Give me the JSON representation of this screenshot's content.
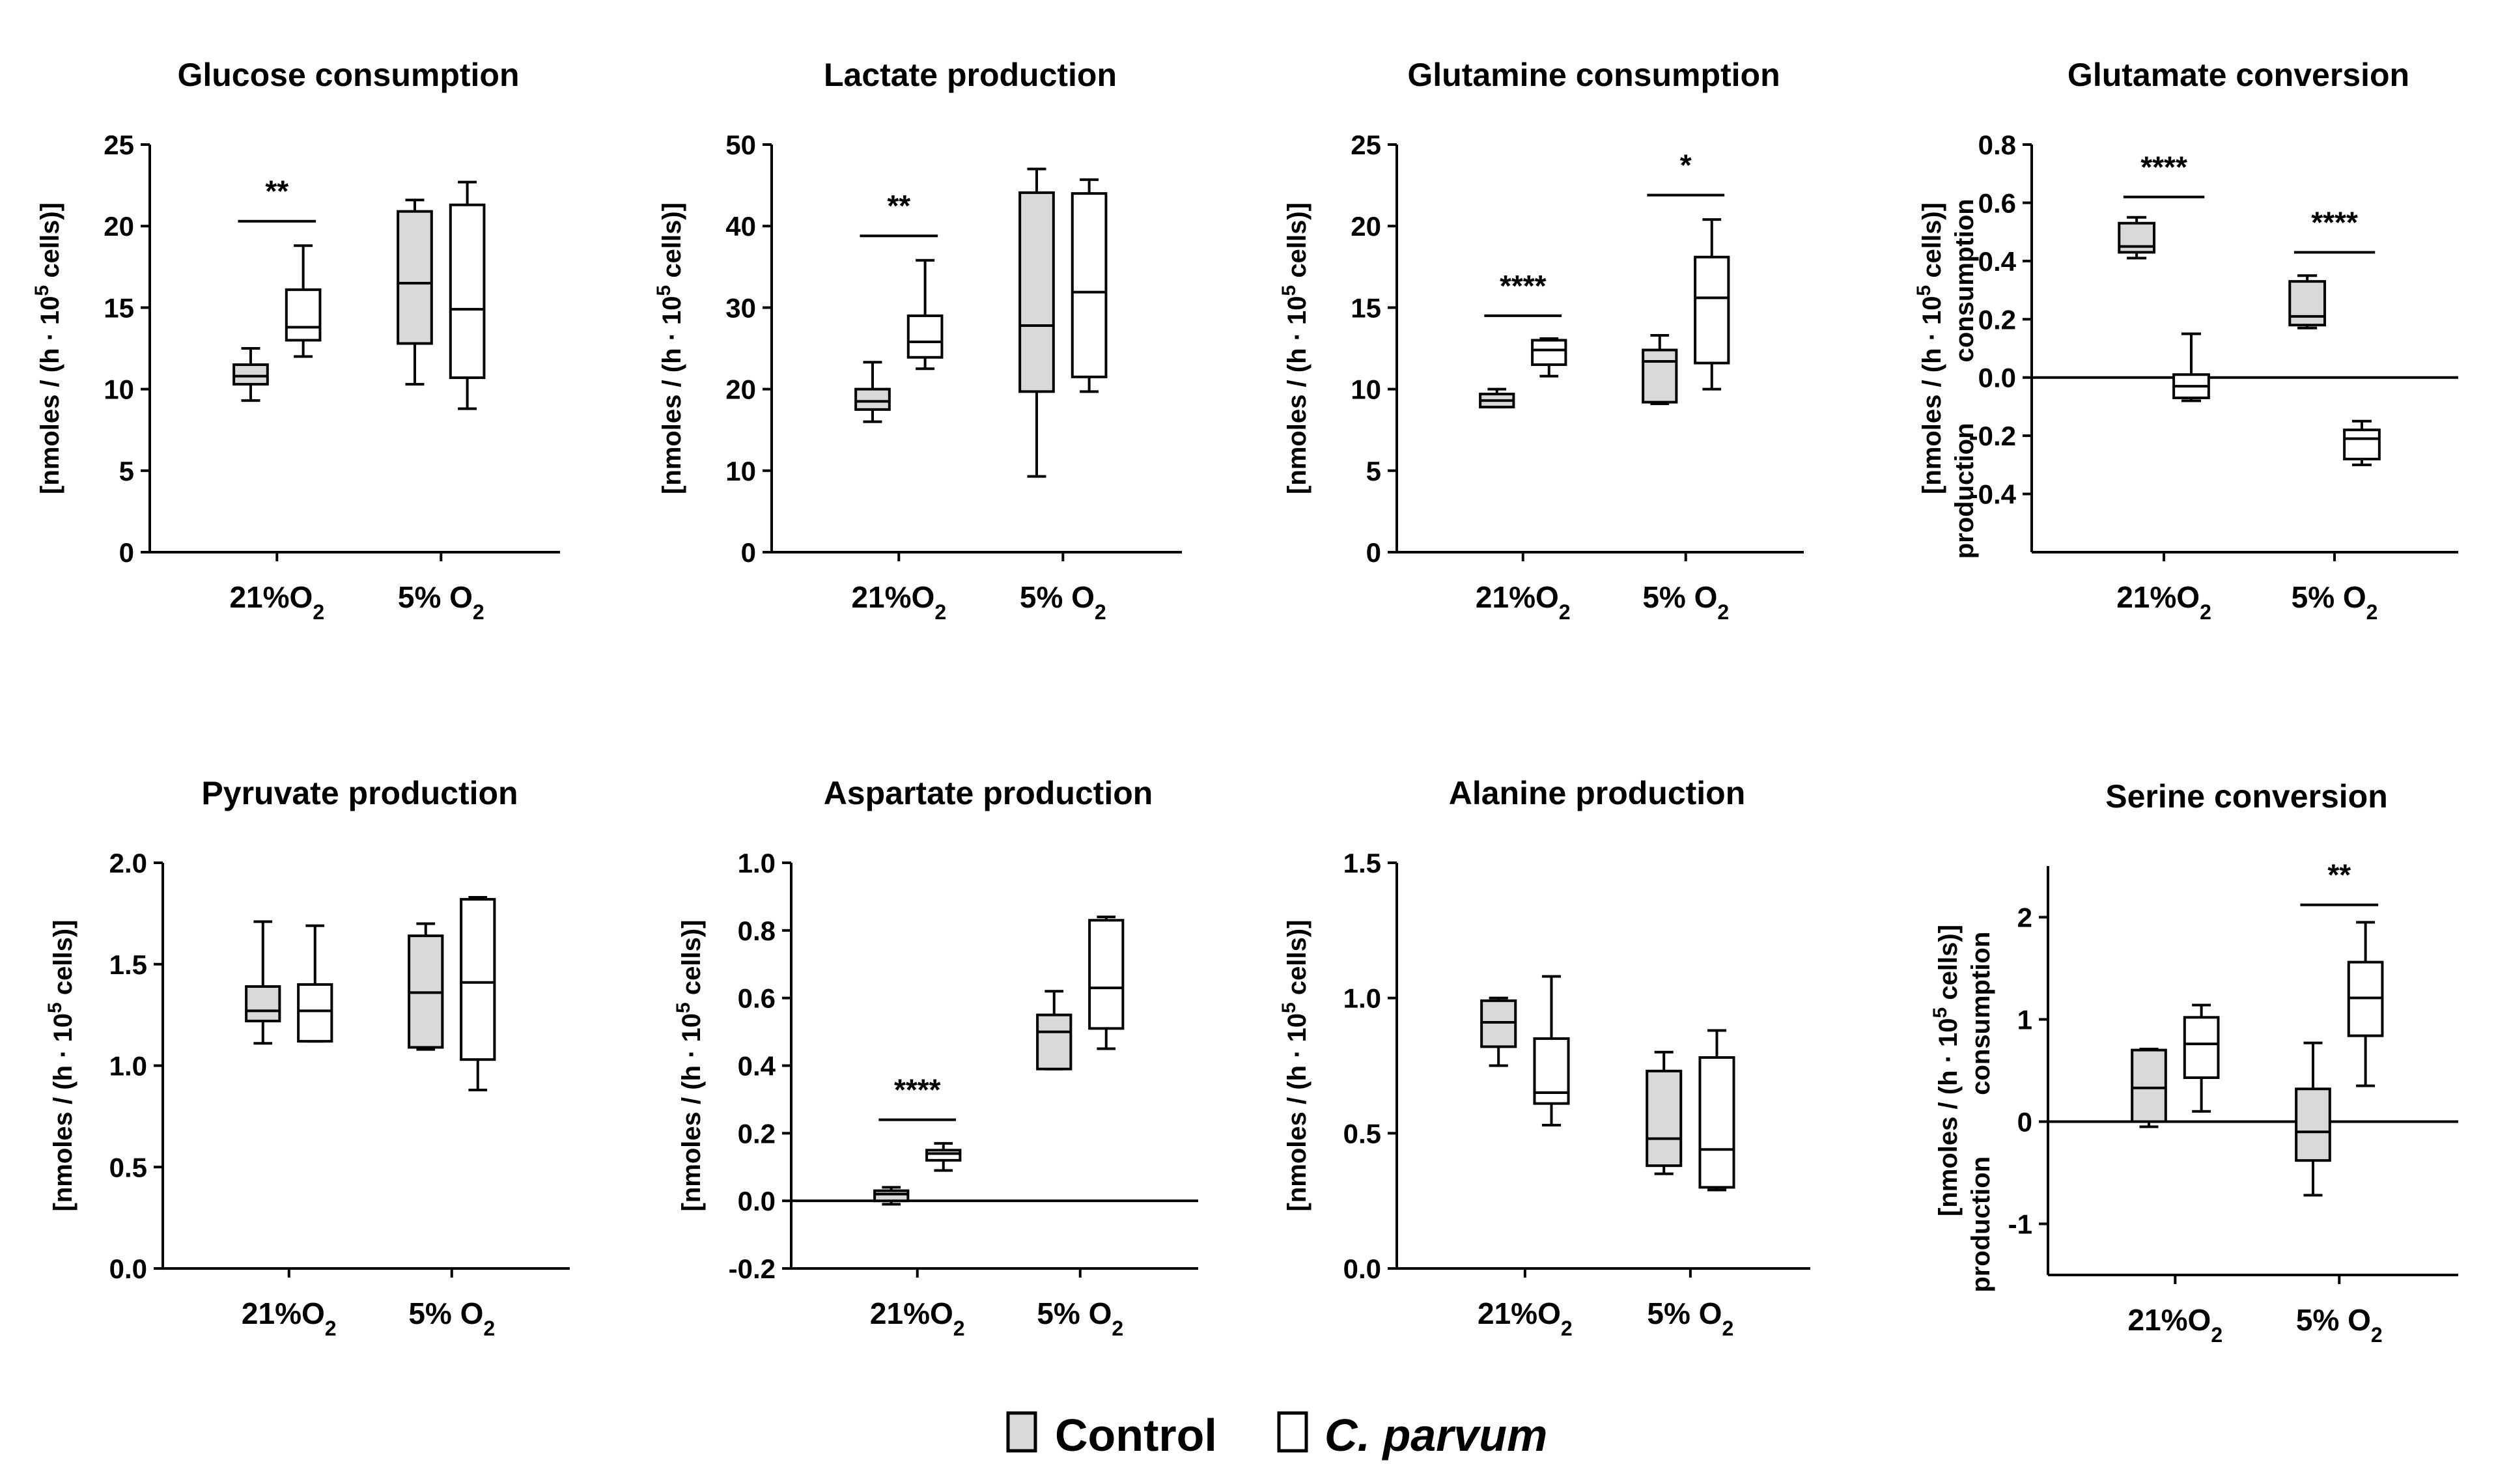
{
  "legend": {
    "control_label": "Control",
    "infected_label": "C. parvum",
    "control_color": "#d9d9d9",
    "infected_color": "#ffffff"
  },
  "chart_data": [
    {
      "type": "box",
      "title": "Glucose consumption",
      "ylabel": "[nmoles / (h · 10^5 cells)]",
      "ylim": [
        0,
        25
      ],
      "yticks": [
        "0",
        "5",
        "10",
        "15",
        "20",
        "25"
      ],
      "categories": [
        "21%O2",
        "5% O2"
      ],
      "series": [
        {
          "name": "Control",
          "boxes": [
            {
              "min": 9.3,
              "q1": 10.3,
              "median": 10.8,
              "q3": 11.5,
              "max": 12.5
            },
            {
              "min": 10.3,
              "q1": 12.8,
              "median": 16.5,
              "q3": 20.9,
              "max": 21.6
            }
          ]
        },
        {
          "name": "C. parvum",
          "boxes": [
            {
              "min": 12.0,
              "q1": 13.0,
              "median": 13.8,
              "q3": 16.1,
              "max": 18.8
            },
            {
              "min": 8.8,
              "q1": 10.7,
              "median": 14.9,
              "q3": 21.3,
              "max": 22.7
            }
          ]
        }
      ],
      "significance": [
        {
          "category": 0,
          "label": "**",
          "value": 20.3
        }
      ]
    },
    {
      "type": "box",
      "title": "Lactate  production",
      "ylabel": "[nmoles / (h · 10^5 cells)]",
      "ylim": [
        0,
        50
      ],
      "yticks": [
        "0",
        "10",
        "20",
        "30",
        "40",
        "50"
      ],
      "categories": [
        "21%O2",
        "5% O2"
      ],
      "series": [
        {
          "name": "Control",
          "boxes": [
            {
              "min": 16.0,
              "q1": 17.5,
              "median": 18.5,
              "q3": 20.0,
              "max": 23.3
            },
            {
              "min": 9.3,
              "q1": 19.7,
              "median": 27.8,
              "q3": 44.1,
              "max": 47.0
            }
          ]
        },
        {
          "name": "C. parvum",
          "boxes": [
            {
              "min": 22.5,
              "q1": 23.9,
              "median": 25.8,
              "q3": 29.0,
              "max": 35.8
            },
            {
              "min": 19.7,
              "q1": 21.5,
              "median": 31.9,
              "q3": 44.0,
              "max": 45.7
            }
          ]
        }
      ],
      "significance": [
        {
          "category": 0,
          "label": "**",
          "value": 38.8
        }
      ]
    },
    {
      "type": "box",
      "title": "Glutamine consumption",
      "ylabel": "[nmoles / (h · 10^5 cells)]",
      "ylim": [
        0,
        25
      ],
      "yticks": [
        "0",
        "5",
        "10",
        "15",
        "20",
        "25"
      ],
      "categories": [
        "21%O2",
        "5% O2"
      ],
      "series": [
        {
          "name": "Control",
          "boxes": [
            {
              "min": 8.9,
              "q1": 8.9,
              "median": 9.3,
              "q3": 9.7,
              "max": 10.0
            },
            {
              "min": 9.1,
              "q1": 9.2,
              "median": 11.7,
              "q3": 12.4,
              "max": 13.3
            }
          ]
        },
        {
          "name": "C. parvum",
          "boxes": [
            {
              "min": 10.8,
              "q1": 11.5,
              "median": 12.4,
              "q3": 13.0,
              "max": 13.1
            },
            {
              "min": 10.0,
              "q1": 11.6,
              "median": 15.6,
              "q3": 18.1,
              "max": 20.4
            }
          ]
        }
      ],
      "significance": [
        {
          "category": 0,
          "label": "****",
          "value": 14.5
        },
        {
          "category": 1,
          "label": "*",
          "value": 21.9
        }
      ]
    },
    {
      "type": "box",
      "title": "Glutamate conversion",
      "ylabel": "[nmoles / (h · 10^5 cells)]",
      "ylabel_extra": [
        "production",
        "consumption"
      ],
      "ylim": [
        -0.6,
        0.8
      ],
      "yticks": [
        "-0.4",
        "-0.2",
        "0.0",
        "0.2",
        "0.4",
        "0.6",
        "0.8"
      ],
      "zero_line": true,
      "categories": [
        "21%O2",
        "5% O2"
      ],
      "series": [
        {
          "name": "Control",
          "boxes": [
            {
              "min": 0.41,
              "q1": 0.43,
              "median": 0.45,
              "q3": 0.53,
              "max": 0.55
            },
            {
              "min": 0.17,
              "q1": 0.18,
              "median": 0.21,
              "q3": 0.33,
              "max": 0.35
            }
          ]
        },
        {
          "name": "C. parvum",
          "boxes": [
            {
              "min": -0.08,
              "q1": -0.07,
              "median": -0.03,
              "q3": 0.01,
              "max": 0.15
            },
            {
              "min": -0.3,
              "q1": -0.28,
              "median": -0.21,
              "q3": -0.18,
              "max": -0.15
            }
          ]
        }
      ],
      "significance": [
        {
          "category": 0,
          "label": "****",
          "value": 0.62
        },
        {
          "category": 1,
          "label": "****",
          "value": 0.43
        }
      ]
    },
    {
      "type": "box",
      "title": "Pyruvate production",
      "ylabel": "[nmoles / (h · 10^5 cells)]",
      "ylim": [
        0,
        2.0
      ],
      "yticks": [
        "0.0",
        "0.5",
        "1.0",
        "1.5",
        "2.0"
      ],
      "categories": [
        "21%O2",
        "5% O2"
      ],
      "series": [
        {
          "name": "Control",
          "boxes": [
            {
              "min": 1.11,
              "q1": 1.22,
              "median": 1.27,
              "q3": 1.39,
              "max": 1.71
            },
            {
              "min": 1.08,
              "q1": 1.09,
              "median": 1.36,
              "q3": 1.64,
              "max": 1.7
            }
          ]
        },
        {
          "name": "C. parvum",
          "boxes": [
            {
              "min": 1.12,
              "q1": 1.12,
              "median": 1.27,
              "q3": 1.4,
              "max": 1.69
            },
            {
              "min": 0.88,
              "q1": 1.03,
              "median": 1.41,
              "q3": 1.82,
              "max": 1.83
            }
          ]
        }
      ],
      "significance": []
    },
    {
      "type": "box",
      "title": "Aspartate production",
      "ylabel": "[nmoles / (h · 10^5 cells)]",
      "ylim": [
        -0.2,
        1.0
      ],
      "yticks": [
        "-0.2",
        "0.0",
        "0.2",
        "0.4",
        "0.6",
        "0.8",
        "1.0"
      ],
      "zero_line": true,
      "categories": [
        "21%O2",
        "5% O2"
      ],
      "series": [
        {
          "name": "Control",
          "boxes": [
            {
              "min": -0.01,
              "q1": 0.0,
              "median": 0.02,
              "q3": 0.03,
              "max": 0.04
            },
            {
              "min": 0.39,
              "q1": 0.39,
              "median": 0.5,
              "q3": 0.55,
              "max": 0.62
            }
          ]
        },
        {
          "name": "C. parvum",
          "boxes": [
            {
              "min": 0.09,
              "q1": 0.12,
              "median": 0.14,
              "q3": 0.15,
              "max": 0.17
            },
            {
              "min": 0.45,
              "q1": 0.51,
              "median": 0.63,
              "q3": 0.83,
              "max": 0.84
            }
          ]
        }
      ],
      "significance": [
        {
          "category": 0,
          "label": "****",
          "value": 0.24
        }
      ]
    },
    {
      "type": "box",
      "title": "Alanine production",
      "ylabel": "[nmoles / (h · 10^5 cells)]",
      "ylim": [
        0,
        1.5
      ],
      "yticks": [
        "0.0",
        "0.5",
        "1.0",
        "1.5"
      ],
      "categories": [
        "21%O2",
        "5% O2"
      ],
      "series": [
        {
          "name": "Control",
          "boxes": [
            {
              "min": 0.75,
              "q1": 0.82,
              "median": 0.91,
              "q3": 0.99,
              "max": 1.0
            },
            {
              "min": 0.35,
              "q1": 0.38,
              "median": 0.48,
              "q3": 0.73,
              "max": 0.8
            }
          ]
        },
        {
          "name": "C. parvum",
          "boxes": [
            {
              "min": 0.53,
              "q1": 0.61,
              "median": 0.65,
              "q3": 0.85,
              "max": 1.08
            },
            {
              "min": 0.29,
              "q1": 0.3,
              "median": 0.44,
              "q3": 0.78,
              "max": 0.88
            }
          ]
        }
      ],
      "significance": []
    },
    {
      "type": "box",
      "title": "Serine conversion",
      "ylabel": "[nmoles / (h · 10^5 cells)]",
      "ylabel_extra": [
        "production",
        "consumption"
      ],
      "ylim": [
        -1.5,
        2.5
      ],
      "yticks": [
        "-1",
        "0",
        "1",
        "2"
      ],
      "zero_line": true,
      "categories": [
        "21%O2",
        "5% O2"
      ],
      "series": [
        {
          "name": "Control",
          "boxes": [
            {
              "min": -0.05,
              "q1": 0.0,
              "median": 0.33,
              "q3": 0.7,
              "max": 0.71
            },
            {
              "min": -0.72,
              "q1": -0.38,
              "median": -0.1,
              "q3": 0.32,
              "max": 0.77
            }
          ]
        },
        {
          "name": "C. parvum",
          "boxes": [
            {
              "min": 0.1,
              "q1": 0.43,
              "median": 0.76,
              "q3": 1.02,
              "max": 1.14
            },
            {
              "min": 0.35,
              "q1": 0.84,
              "median": 1.21,
              "q3": 1.56,
              "max": 1.95
            }
          ]
        }
      ],
      "significance": [
        {
          "category": 1,
          "label": "**",
          "value": 2.12
        }
      ]
    }
  ]
}
